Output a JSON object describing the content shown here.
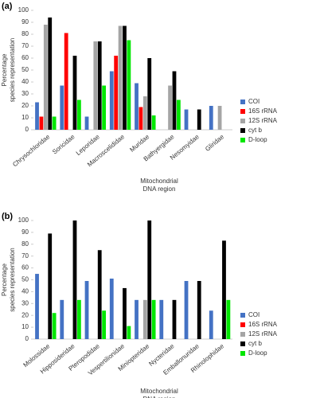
{
  "chart_data": [
    {
      "type": "bar",
      "panel": "(a)",
      "ylabel": [
        "Percentage",
        "species representation"
      ],
      "xlabel": [
        "Mitochondrial",
        "DNA region"
      ],
      "categories": [
        "Chrysochloridae",
        "Soricidae",
        "Leporidae",
        "Macroscelididae",
        "Muridae",
        "Bathyergidae",
        "Nesomyidae",
        "Gliridae"
      ],
      "series": [
        {
          "name": "COI",
          "color": "#4472c4",
          "values": [
            23,
            37,
            11,
            49,
            39,
            null,
            17,
            20
          ]
        },
        {
          "name": "16S rRNA",
          "color": "#ff0000",
          "values": [
            11,
            81,
            null,
            62,
            19,
            null,
            null,
            null
          ]
        },
        {
          "name": "12S rRNA",
          "color": "#a5a5a5",
          "values": [
            88,
            null,
            74,
            87,
            28,
            37,
            null,
            20
          ]
        },
        {
          "name": "cyt b",
          "color": "#000000",
          "values": [
            94,
            62,
            74,
            87,
            60,
            49,
            17,
            null
          ]
        },
        {
          "name": "D-loop",
          "color": "#00e600",
          "values": [
            11,
            25,
            37,
            75,
            12,
            25,
            null,
            null
          ]
        }
      ],
      "ylim": [
        0,
        100
      ],
      "yticks": [
        0,
        10,
        20,
        30,
        40,
        50,
        60,
        70,
        80,
        90,
        100
      ],
      "legend": "right"
    },
    {
      "type": "bar",
      "panel": "(b)",
      "ylabel": [
        "Percentage",
        "species representation"
      ],
      "xlabel": [
        "Mitochondrial",
        "DNA region"
      ],
      "categories": [
        "Molossidae",
        "Hipposideridae",
        "Pteropodidae",
        "Vespertilionidae",
        "Miniopteridae",
        "Nycteridae",
        "Emballonuridae",
        "Rhinolophidae"
      ],
      "series": [
        {
          "name": "COI",
          "color": "#4472c4",
          "values": [
            55,
            33,
            49,
            51,
            33,
            33,
            49,
            24
          ]
        },
        {
          "name": "16S rRNA",
          "color": "#ff0000",
          "values": [
            null,
            null,
            null,
            null,
            null,
            null,
            null,
            null
          ]
        },
        {
          "name": "12S rRNA",
          "color": "#a5a5a5",
          "values": [
            null,
            null,
            null,
            null,
            33,
            null,
            null,
            null
          ]
        },
        {
          "name": "cyt b",
          "color": "#000000",
          "values": [
            89,
            100,
            75,
            43,
            100,
            33,
            49,
            83
          ]
        },
        {
          "name": "D-loop",
          "color": "#00e600",
          "values": [
            22,
            33,
            24,
            11,
            33,
            null,
            null,
            33
          ]
        }
      ],
      "ylim": [
        0,
        100
      ],
      "yticks": [
        0,
        10,
        20,
        30,
        40,
        50,
        60,
        70,
        80,
        90,
        100
      ],
      "legend": "right"
    }
  ]
}
